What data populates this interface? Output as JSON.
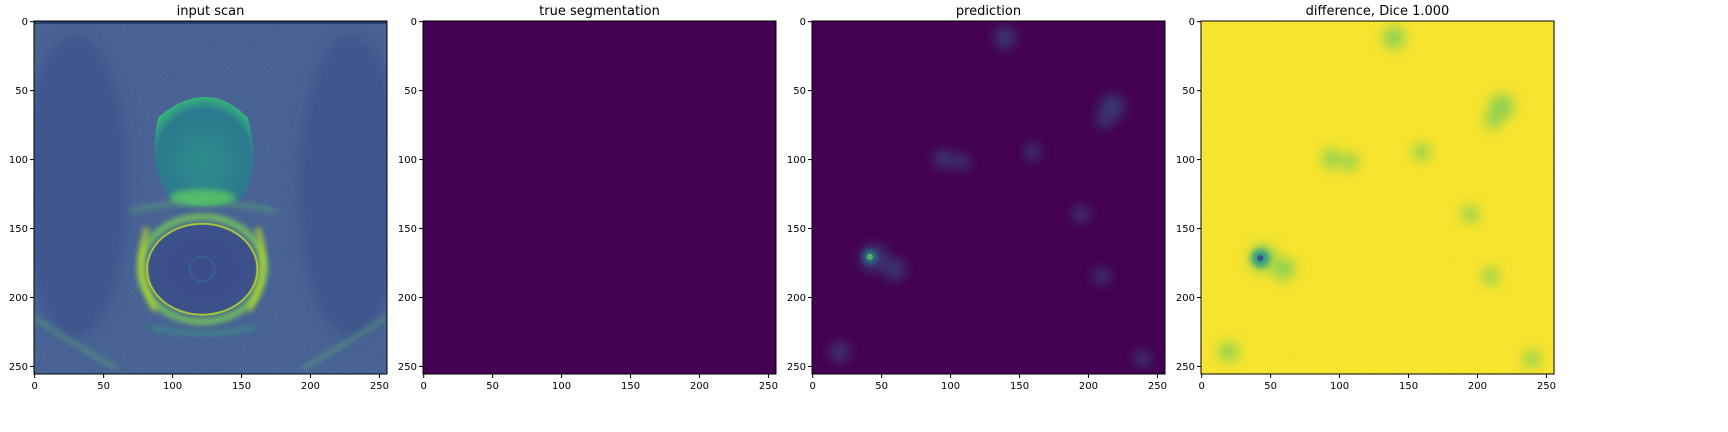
{
  "figure": {
    "panels": [
      {
        "id": "input",
        "title": "input scan",
        "colormap": "viridis",
        "content": "mri-scan"
      },
      {
        "id": "truth",
        "title": "true segmentation",
        "colormap": "viridis",
        "content": "uniform"
      },
      {
        "id": "prediction",
        "title": "prediction",
        "colormap": "viridis",
        "content": "low-heatmap"
      },
      {
        "id": "difference",
        "title": "difference, Dice 1.000",
        "colormap": "viridis",
        "content": "high-heatmap"
      }
    ],
    "axes": {
      "xlim": [
        0,
        255
      ],
      "ylim": [
        255,
        0
      ],
      "x_ticks": [
        0,
        50,
        100,
        150,
        200,
        250
      ],
      "y_ticks": [
        0,
        50,
        100,
        150,
        200,
        250
      ],
      "grid": false
    },
    "colors": {
      "viridis_low": "#440154",
      "viridis_mid": "#21918c",
      "viridis_green": "#5ec962",
      "viridis_high": "#fde725",
      "scan_background": "#3b528b"
    }
  }
}
